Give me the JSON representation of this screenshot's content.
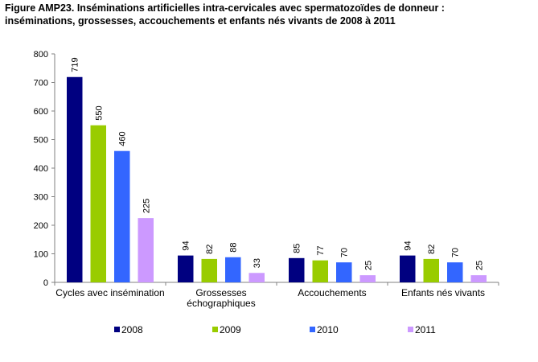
{
  "chart_data": {
    "type": "bar",
    "title_line1": "Figure AMP23. Inséminations artificielles intra-cervicales avec spermatozoïdes de donneur :",
    "title_line2": "inséminations, grossesses, accouchements et enfants nés vivants de 2008 à 2011",
    "categories": [
      [
        "Cycles avec insémination"
      ],
      [
        "Grossesses",
        "échographiques"
      ],
      [
        "Accouchements"
      ],
      [
        "Enfants nés vivants"
      ]
    ],
    "series": [
      {
        "name": "2008",
        "color": "#000080",
        "values": [
          719,
          94,
          85,
          94
        ]
      },
      {
        "name": "2009",
        "color": "#99CC00",
        "values": [
          550,
          82,
          77,
          82
        ]
      },
      {
        "name": "2010",
        "color": "#3366FF",
        "values": [
          460,
          88,
          70,
          70
        ]
      },
      {
        "name": "2011",
        "color": "#CC99FF",
        "values": [
          225,
          33,
          25,
          25
        ]
      }
    ],
    "yticks": [
      "0",
      "100",
      "200",
      "300",
      "400",
      "500",
      "600",
      "700",
      "800"
    ],
    "ylim": [
      0,
      800
    ],
    "grid": false,
    "legend_position": "bottom"
  }
}
